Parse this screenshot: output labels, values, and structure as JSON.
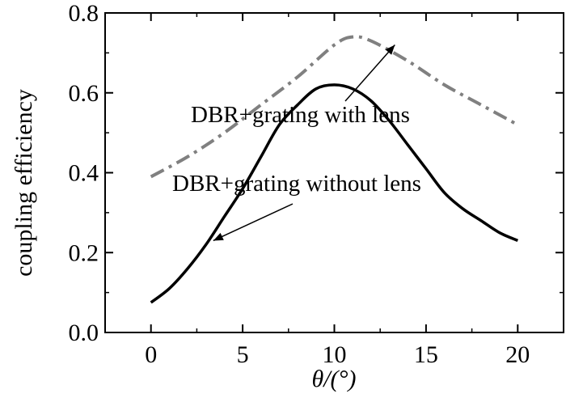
{
  "chart_data": {
    "type": "line",
    "xlabel": "θ/(°)",
    "ylabel": "coupling efficiency",
    "xlim": [
      -2.5,
      22.5
    ],
    "ylim": [
      0.0,
      0.8
    ],
    "x_ticks": [
      0,
      5,
      10,
      15,
      20
    ],
    "y_ticks": [
      0.0,
      0.2,
      0.4,
      0.6,
      0.8
    ],
    "x_tick_labels": [
      "0",
      "5",
      "10",
      "15",
      "20"
    ],
    "y_tick_labels": [
      "0.0",
      "0.2",
      "0.4",
      "0.6",
      "0.8"
    ],
    "grid": false,
    "series": [
      {
        "name": "DBR+grating with lens",
        "style": "dash-dot",
        "color": "#808080",
        "x": [
          0,
          2,
          4,
          6,
          8,
          10,
          11,
          12,
          14,
          16,
          18,
          20
        ],
        "y": [
          0.39,
          0.44,
          0.5,
          0.57,
          0.64,
          0.72,
          0.74,
          0.73,
          0.68,
          0.62,
          0.57,
          0.52
        ]
      },
      {
        "name": "DBR+grating without lens",
        "style": "solid",
        "color": "#000000",
        "x": [
          0,
          1,
          2,
          3,
          4,
          5,
          6,
          7,
          8,
          9,
          10,
          11,
          12,
          13,
          14,
          15,
          16,
          17,
          18,
          19,
          20
        ],
        "y": [
          0.075,
          0.11,
          0.16,
          0.22,
          0.29,
          0.36,
          0.44,
          0.52,
          0.57,
          0.61,
          0.62,
          0.61,
          0.58,
          0.53,
          0.47,
          0.41,
          0.35,
          0.31,
          0.28,
          0.25,
          0.23
        ]
      }
    ],
    "annotations": [
      {
        "text": "DBR+grating with lens",
        "arrow_to": {
          "x": 13.3,
          "y": 0.72
        }
      },
      {
        "text": "DBR+grating without lens",
        "arrow_to": {
          "x": 3.4,
          "y": 0.23
        }
      }
    ]
  }
}
